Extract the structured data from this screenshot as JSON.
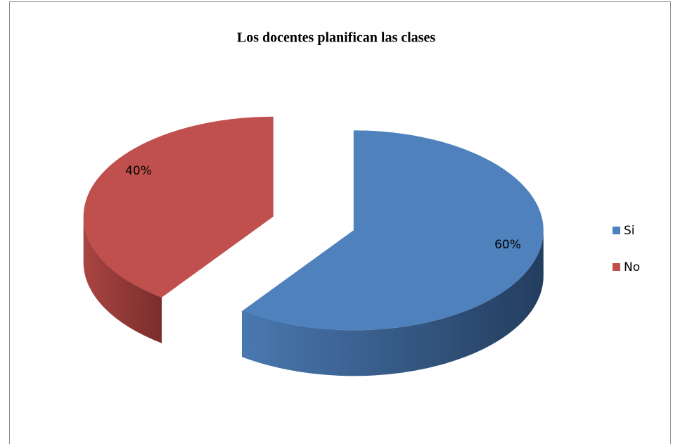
{
  "chart_data": {
    "type": "pie3d",
    "title": "Los docentes planifican las clases",
    "categories": [
      "Si",
      "No"
    ],
    "values": [
      60,
      40
    ],
    "value_labels": [
      "60%",
      "40%"
    ],
    "colors": [
      "#4f81bd",
      "#c0504d"
    ],
    "legend": "right"
  }
}
